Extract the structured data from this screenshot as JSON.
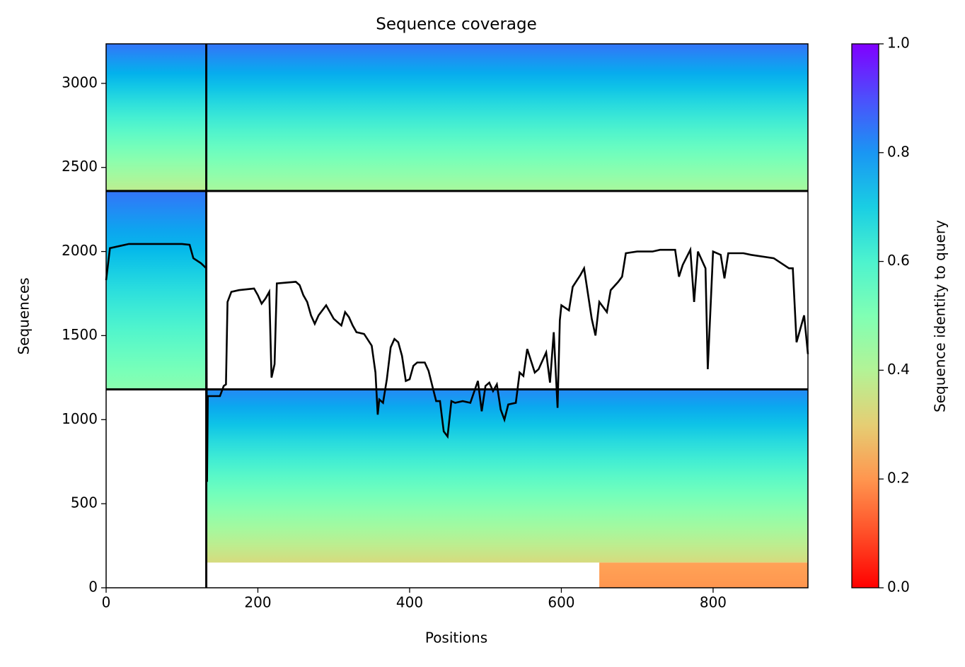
{
  "chart_data": {
    "type": "coverage",
    "title": "Sequence coverage",
    "xlabel": "Positions",
    "ylabel": "Sequences",
    "xlim": [
      0,
      925
    ],
    "ylim": [
      0,
      3235
    ],
    "xticks": [
      0,
      200,
      400,
      600,
      800
    ],
    "yticks": [
      0,
      500,
      1000,
      1500,
      2000,
      2500,
      3000
    ],
    "colormap": "rainbow_r",
    "colorbar_label": "Sequence identity to query",
    "clim": [
      0,
      1
    ],
    "cticks": [
      {
        "value": 0,
        "label": "0.0"
      },
      0.2,
      0.4,
      0.6,
      0.8,
      {
        "value": 1,
        "label": "1.0"
      }
    ],
    "blocks": [
      {
        "x": [
          0,
          132
        ],
        "y": [
          2360,
          3235
        ],
        "identity": [
          0.38,
          0.85
        ]
      },
      {
        "x": [
          132,
          925
        ],
        "y": [
          2360,
          3235
        ],
        "identity": [
          0.42,
          0.85
        ]
      },
      {
        "x": [
          0,
          132
        ],
        "y": [
          1180,
          2360
        ],
        "identity": [
          0.48,
          0.85
        ]
      },
      {
        "x": [
          132,
          925
        ],
        "y": [
          150,
          1180
        ],
        "identity": [
          0.33,
          0.82
        ]
      },
      {
        "x": [
          650,
          925
        ],
        "y": [
          0,
          150
        ],
        "identity": [
          0.2,
          0.22
        ]
      }
    ],
    "boundaries_x": [
      132
    ],
    "boundaries_y": [
      1180,
      2360
    ],
    "line_color": "#000000",
    "coverage": {
      "x": [
        0,
        5,
        20,
        30,
        100,
        110,
        115,
        125,
        132,
        133,
        134,
        150,
        155,
        158,
        160,
        165,
        175,
        195,
        200,
        205,
        210,
        215,
        218,
        222,
        225,
        250,
        255,
        260,
        265,
        270,
        275,
        280,
        290,
        300,
        310,
        315,
        320,
        325,
        330,
        340,
        350,
        355,
        358,
        360,
        365,
        370,
        375,
        380,
        385,
        390,
        395,
        400,
        405,
        410,
        420,
        425,
        430,
        435,
        440,
        445,
        450,
        455,
        460,
        470,
        480,
        490,
        495,
        500,
        505,
        510,
        515,
        520,
        525,
        530,
        540,
        545,
        550,
        555,
        565,
        570,
        580,
        585,
        590,
        595,
        598,
        600,
        610,
        615,
        625,
        630,
        640,
        645,
        650,
        660,
        665,
        675,
        680,
        685,
        700,
        720,
        730,
        750,
        755,
        760,
        770,
        775,
        780,
        790,
        793,
        800,
        810,
        815,
        820,
        840,
        850,
        880,
        900,
        905,
        910,
        920,
        925
      ],
      "values": [
        1830,
        2020,
        2035,
        2045,
        2045,
        2040,
        1960,
        1930,
        1900,
        630,
        1140,
        1140,
        1200,
        1210,
        1700,
        1760,
        1770,
        1780,
        1740,
        1690,
        1720,
        1760,
        1250,
        1330,
        1810,
        1820,
        1800,
        1740,
        1700,
        1620,
        1570,
        1620,
        1680,
        1600,
        1560,
        1640,
        1610,
        1560,
        1520,
        1510,
        1440,
        1280,
        1030,
        1120,
        1100,
        1240,
        1430,
        1480,
        1460,
        1380,
        1230,
        1240,
        1320,
        1340,
        1340,
        1290,
        1200,
        1110,
        1110,
        930,
        900,
        1110,
        1100,
        1110,
        1100,
        1230,
        1050,
        1200,
        1220,
        1170,
        1210,
        1060,
        1000,
        1090,
        1100,
        1280,
        1260,
        1420,
        1280,
        1300,
        1400,
        1220,
        1520,
        1070,
        1590,
        1680,
        1650,
        1790,
        1860,
        1900,
        1600,
        1500,
        1700,
        1640,
        1770,
        1820,
        1850,
        1990,
        2000,
        2000,
        2010,
        2010,
        1850,
        1920,
        2010,
        1700,
        2000,
        1900,
        1300,
        2000,
        1980,
        1840,
        1990,
        1990,
        1980,
        1960,
        1900,
        1900,
        1460,
        1620,
        1390
      ]
    }
  }
}
